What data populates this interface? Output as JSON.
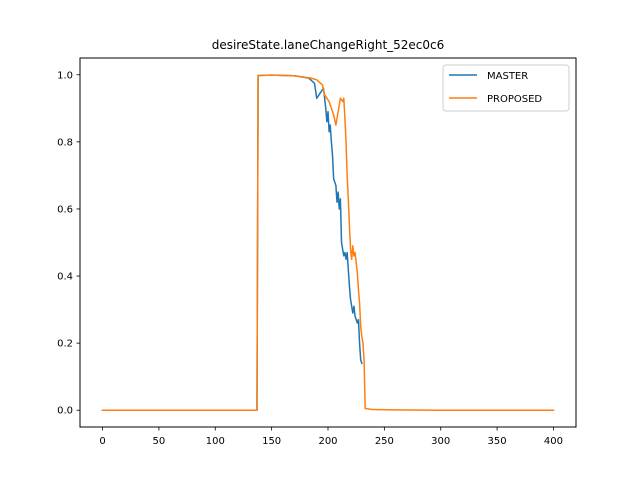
{
  "chart_data": {
    "type": "line",
    "title": "desireState.laneChangeRight_52ec0c6",
    "xlabel": "",
    "ylabel": "",
    "xlim": [
      -20,
      420
    ],
    "ylim": [
      -0.05,
      1.05
    ],
    "x_ticks": [
      0,
      50,
      100,
      150,
      200,
      250,
      300,
      350,
      400
    ],
    "y_ticks": [
      0.0,
      0.2,
      0.4,
      0.6,
      0.8,
      1.0
    ],
    "grid": false,
    "legend_position": "top-right",
    "series": [
      {
        "name": "MASTER",
        "color": "#1f77b4",
        "points": [
          [
            0,
            0.0
          ],
          [
            137,
            0.0
          ],
          [
            138,
            0.998
          ],
          [
            150,
            0.999
          ],
          [
            170,
            0.997
          ],
          [
            183,
            0.99
          ],
          [
            188,
            0.975
          ],
          [
            190,
            0.93
          ],
          [
            193,
            0.945
          ],
          [
            196,
            0.96
          ],
          [
            198,
            0.9
          ],
          [
            199,
            0.86
          ],
          [
            200,
            0.89
          ],
          [
            201,
            0.83
          ],
          [
            202,
            0.85
          ],
          [
            203,
            0.8
          ],
          [
            204,
            0.76
          ],
          [
            205,
            0.69
          ],
          [
            207,
            0.67
          ],
          [
            208,
            0.62
          ],
          [
            209,
            0.65
          ],
          [
            210,
            0.6
          ],
          [
            211,
            0.63
          ],
          [
            212,
            0.5
          ],
          [
            213,
            0.48
          ],
          [
            214,
            0.46
          ],
          [
            215,
            0.47
          ],
          [
            216,
            0.45
          ],
          [
            217,
            0.47
          ],
          [
            218,
            0.42
          ],
          [
            219,
            0.37
          ],
          [
            220,
            0.33
          ],
          [
            222,
            0.29
          ],
          [
            223,
            0.31
          ],
          [
            224,
            0.28
          ],
          [
            225,
            0.27
          ],
          [
            226,
            0.26
          ],
          [
            227,
            0.27
          ],
          [
            228,
            0.2
          ],
          [
            229,
            0.15
          ],
          [
            230,
            0.14
          ]
        ]
      },
      {
        "name": "PROPOSED",
        "color": "#ff7f0e",
        "points": [
          [
            0,
            0.0
          ],
          [
            137,
            0.0
          ],
          [
            138,
            0.998
          ],
          [
            150,
            0.999
          ],
          [
            170,
            0.997
          ],
          [
            185,
            0.99
          ],
          [
            190,
            0.985
          ],
          [
            195,
            0.97
          ],
          [
            197,
            0.94
          ],
          [
            199,
            0.93
          ],
          [
            201,
            0.92
          ],
          [
            203,
            0.9
          ],
          [
            205,
            0.88
          ],
          [
            207,
            0.85
          ],
          [
            209,
            0.89
          ],
          [
            211,
            0.93
          ],
          [
            213,
            0.92
          ],
          [
            214,
            0.93
          ],
          [
            215,
            0.87
          ],
          [
            216,
            0.8
          ],
          [
            217,
            0.7
          ],
          [
            218,
            0.63
          ],
          [
            219,
            0.55
          ],
          [
            220,
            0.48
          ],
          [
            221,
            0.45
          ],
          [
            222,
            0.49
          ],
          [
            223,
            0.46
          ],
          [
            224,
            0.47
          ],
          [
            225,
            0.44
          ],
          [
            226,
            0.41
          ],
          [
            227,
            0.36
          ],
          [
            228,
            0.32
          ],
          [
            229,
            0.25
          ],
          [
            230,
            0.22
          ],
          [
            231,
            0.2
          ],
          [
            232,
            0.15
          ],
          [
            233,
            0.005
          ],
          [
            240,
            0.002
          ],
          [
            260,
            0.001
          ],
          [
            300,
            0.0
          ],
          [
            350,
            0.0
          ],
          [
            400,
            0.0
          ]
        ]
      }
    ]
  }
}
